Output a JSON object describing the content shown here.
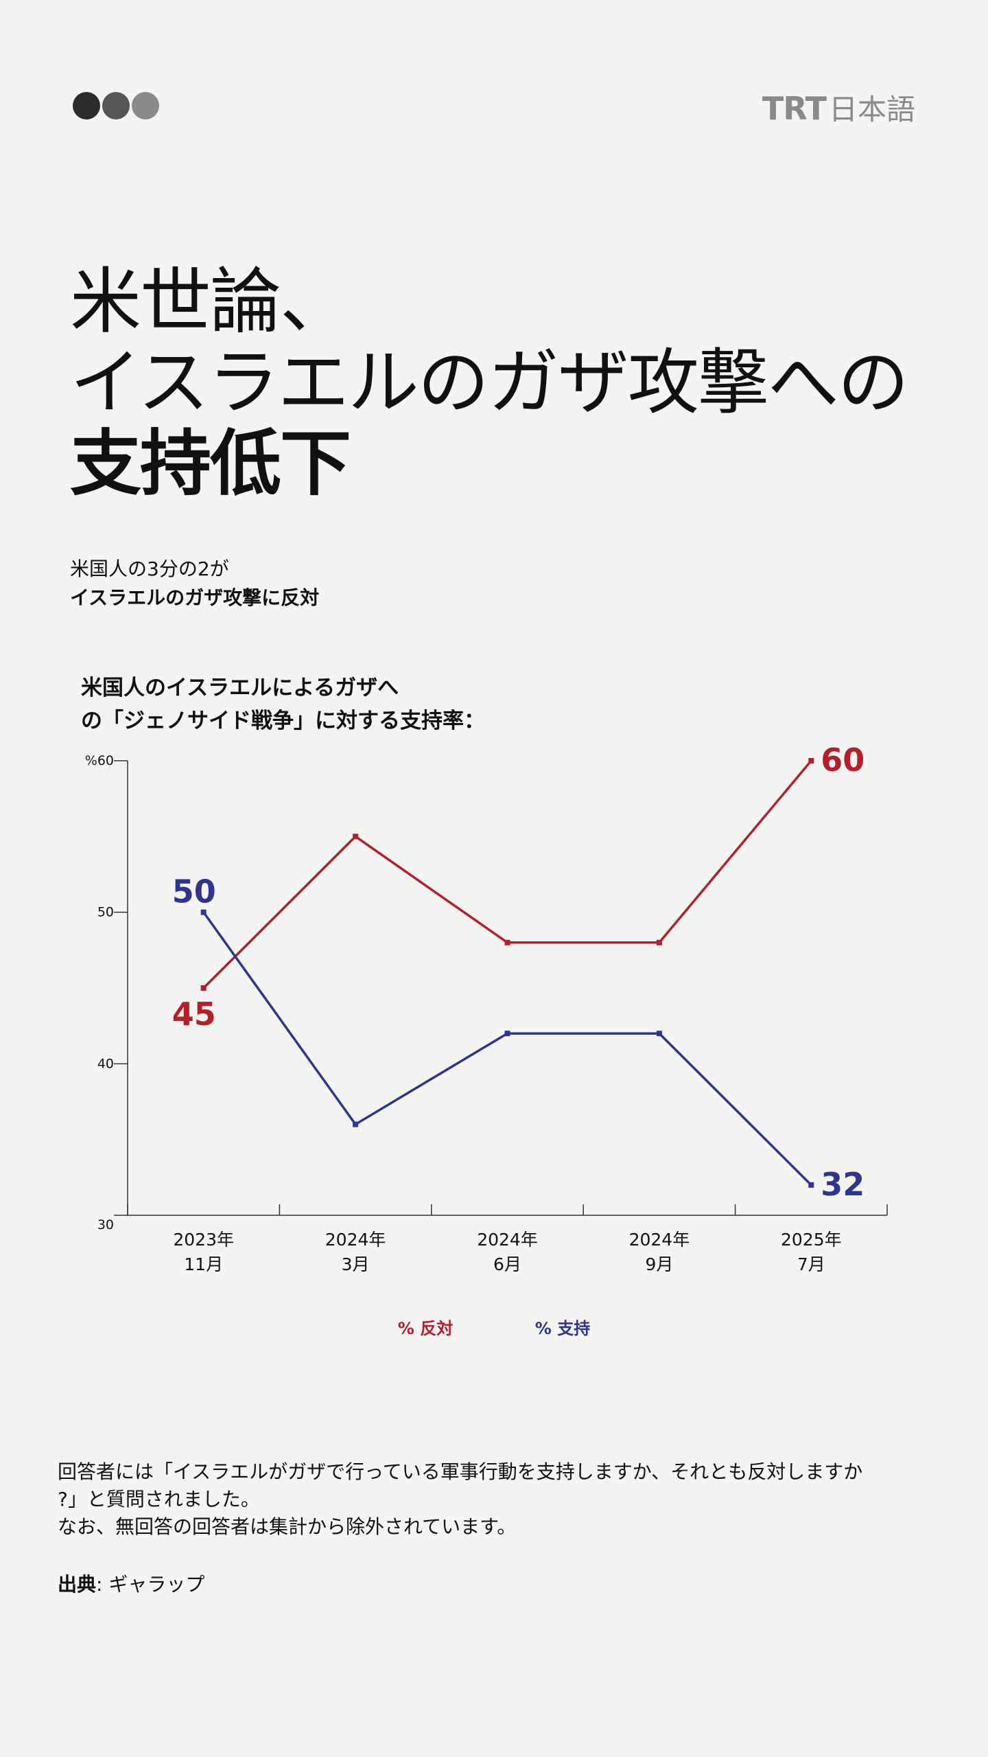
{
  "header": {
    "dots_colors": [
      "#2b2b2b",
      "#555555",
      "#8a8a8a"
    ],
    "logo_text": "TRT",
    "logo_suffix": "日本語"
  },
  "headline": {
    "line1": "米世論、",
    "line2": "イスラエルのガザ攻撃への",
    "line3": "支持低下"
  },
  "subtitle": {
    "line1": "米国人の3分の2が",
    "line2": "イスラエルのガザ攻撃に反対"
  },
  "chart_title": {
    "line1": "米国人のイスラエルによるガザへ",
    "line2": "の「ジェノサイド戦争」に対する支持率："
  },
  "chart_data": {
    "type": "line",
    "title": "米国人のイスラエルによるガザへの「ジェノサイド戦争」に対する支持率：",
    "categories": [
      {
        "year": "2023年",
        "month": "11月"
      },
      {
        "year": "2024年",
        "month": "3月"
      },
      {
        "year": "2024年",
        "month": "6月"
      },
      {
        "year": "2024年",
        "month": "9月"
      },
      {
        "year": "2025年",
        "month": "7月"
      }
    ],
    "ylim": [
      30,
      60
    ],
    "yticks": [
      "30",
      "40",
      "50",
      "%60"
    ],
    "series": [
      {
        "name": "% 反対",
        "color": "#b51f2a",
        "values": [
          45,
          55,
          48,
          48,
          60
        ],
        "start_label": "45",
        "end_label": "60"
      },
      {
        "name": "% 支持",
        "color": "#2d3590",
        "values": [
          50,
          36,
          42,
          42,
          32
        ],
        "start_label": "50",
        "end_label": "32"
      }
    ]
  },
  "footnote": {
    "line1": "回答者には「イスラエルがガザで行っている軍事行動を支持しますか、それとも反対しますか",
    "line2": "?」と質問されました。",
    "line3": "なお、無回答の回答者は集計から除外されています。"
  },
  "source": {
    "label": "出典",
    "value": ": ギャラップ"
  }
}
